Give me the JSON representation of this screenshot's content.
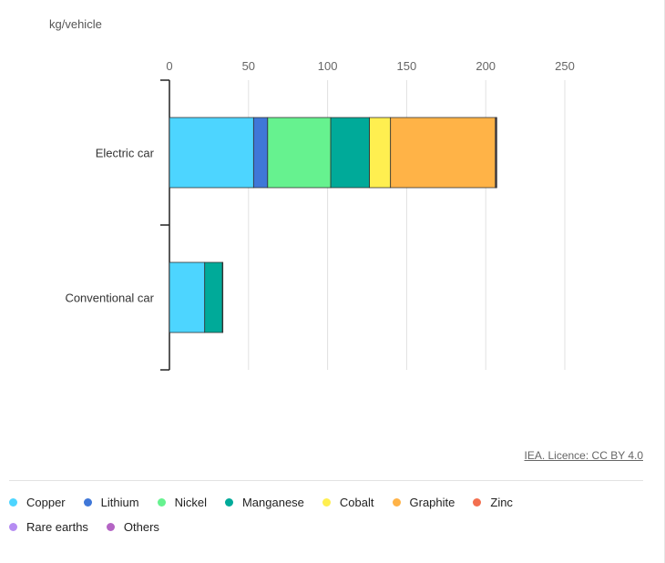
{
  "unit_label": "kg/vehicle",
  "credit": "IEA. Licence: CC BY 4.0",
  "chart_data": {
    "type": "bar",
    "orientation": "horizontal",
    "stacked": true,
    "categories": [
      "Electric car",
      "Conventional car"
    ],
    "xlim": [
      0,
      250
    ],
    "x_ticks": [
      0,
      50,
      100,
      150,
      200,
      250
    ],
    "grid": true,
    "legend_position": "bottom",
    "series": [
      {
        "name": "Copper",
        "color": "#4dd5ff",
        "values": [
          53.2,
          22.3
        ]
      },
      {
        "name": "Lithium",
        "color": "#3f77d8",
        "values": [
          8.9,
          0
        ]
      },
      {
        "name": "Nickel",
        "color": "#66f28f",
        "values": [
          39.9,
          0
        ]
      },
      {
        "name": "Manganese",
        "color": "#00aa99",
        "values": [
          24.5,
          11.2
        ]
      },
      {
        "name": "Cobalt",
        "color": "#ffef50",
        "values": [
          13.3,
          0
        ]
      },
      {
        "name": "Graphite",
        "color": "#ffb347",
        "values": [
          66.3,
          0
        ]
      },
      {
        "name": "Zinc",
        "color": "#f36f4f",
        "values": [
          0.1,
          0
        ]
      },
      {
        "name": "Rare earths",
        "color": "#b58cf2",
        "values": [
          0.5,
          0
        ]
      },
      {
        "name": "Others",
        "color": "#b464c4",
        "values": [
          0.3,
          0.3
        ]
      }
    ]
  }
}
